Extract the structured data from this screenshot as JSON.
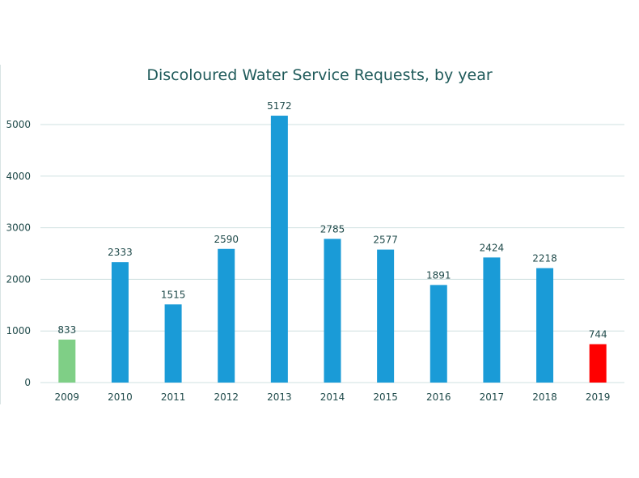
{
  "chart_data": {
    "type": "bar",
    "title": "Discoloured Water Service Requests, by year",
    "xlabel": "",
    "ylabel": "",
    "categories": [
      "2009",
      "2010",
      "2011",
      "2012",
      "2013",
      "2014",
      "2015",
      "2016",
      "2017",
      "2018",
      "2019"
    ],
    "values": [
      833,
      2333,
      1515,
      2590,
      5172,
      2785,
      2577,
      1891,
      2424,
      2218,
      744
    ],
    "bar_colors": [
      "#7fcf86",
      "#1a9bd7",
      "#1a9bd7",
      "#1a9bd7",
      "#1a9bd7",
      "#1a9bd7",
      "#1a9bd7",
      "#1a9bd7",
      "#1a9bd7",
      "#1a9bd7",
      "#ff0000"
    ],
    "ylim": [
      0,
      5000
    ],
    "yticks": [
      0,
      1000,
      2000,
      3000,
      4000,
      5000
    ],
    "grid": true,
    "legend": "none",
    "colors": {
      "gridline": "#cfe0e0",
      "text": "#1f4a4a",
      "title": "#1f5a5a"
    }
  }
}
